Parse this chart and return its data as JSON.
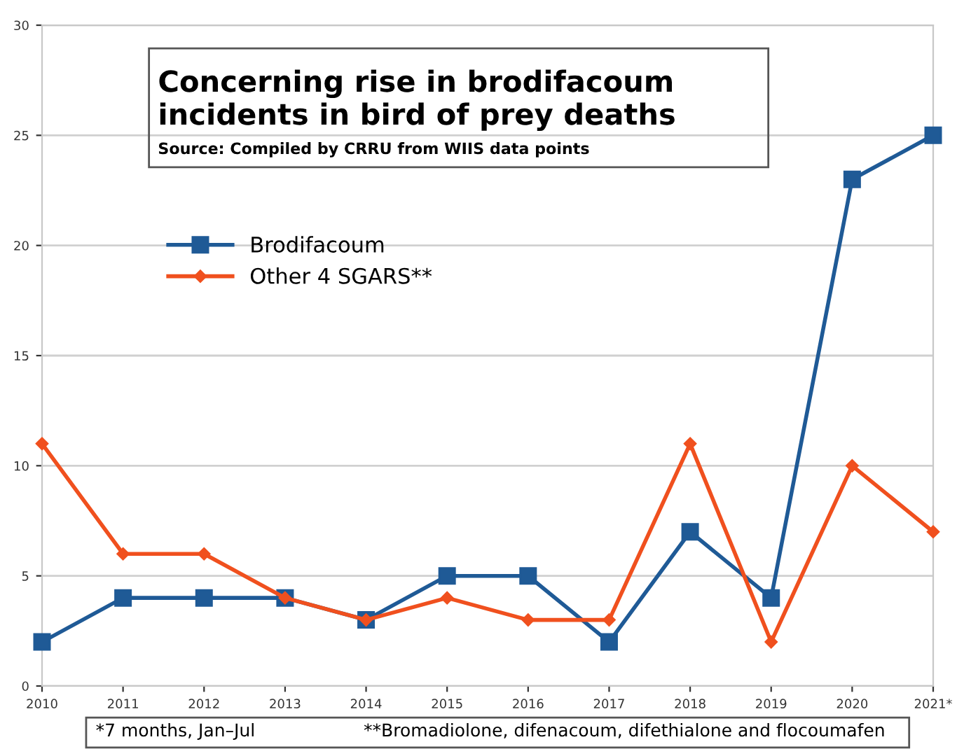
{
  "chart_data": {
    "type": "line",
    "title": "Concerning rise in brodifacoum\nincidents in bird of prey deaths",
    "subtitle": "Source: Compiled by CRRU from WIIS data points",
    "categories": [
      "2010",
      "2011",
      "2012",
      "2013",
      "2014",
      "2015",
      "2016",
      "2017",
      "2018",
      "2019",
      "2020",
      "2021*"
    ],
    "series": [
      {
        "name": "Brodifacoum",
        "color": "#1f5a96",
        "marker": "square",
        "values": [
          2,
          4,
          4,
          4,
          3,
          5,
          5,
          2,
          7,
          4,
          23,
          25
        ]
      },
      {
        "name": "Other 4 SGARS**",
        "color": "#f0501e",
        "marker": "diamond",
        "values": [
          11,
          6,
          6,
          4,
          3,
          4,
          3,
          3,
          11,
          2,
          10,
          7
        ]
      }
    ],
    "ylim": [
      0,
      30
    ],
    "yticks": [
      0,
      5,
      10,
      15,
      20,
      25,
      30
    ],
    "grid": "y",
    "legend": "top left",
    "line_style": "solid",
    "annotations": [
      "*7 months, Jan–Jul",
      "**Bromadiolone, difenacoum, difethialone and flocoumafen"
    ]
  }
}
